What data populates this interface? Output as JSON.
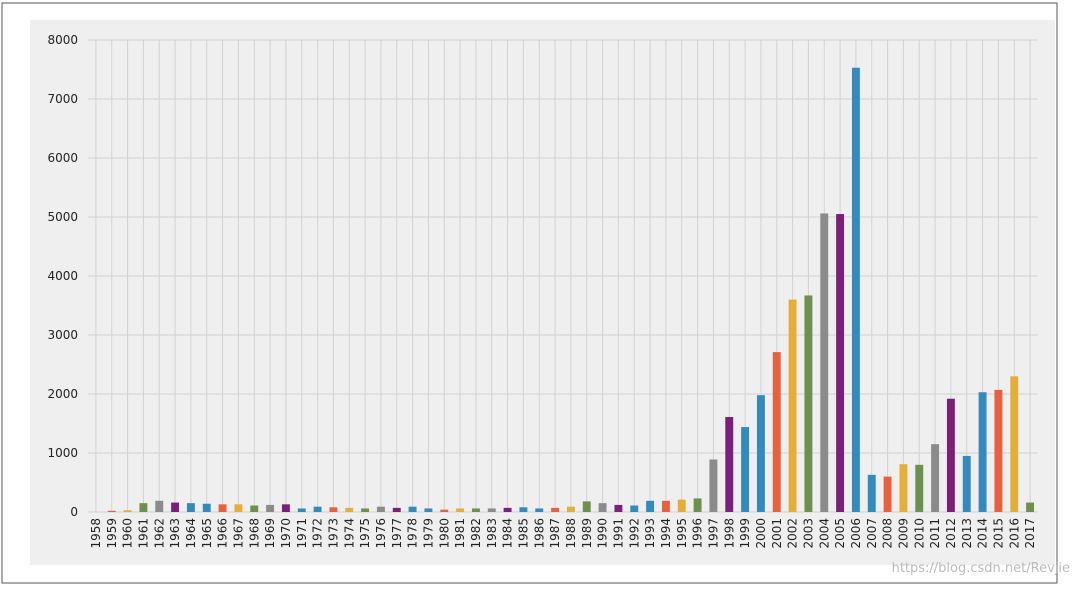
{
  "chart_data": {
    "type": "bar",
    "categories": [
      "1958",
      "1959",
      "1960",
      "1961",
      "1962",
      "1963",
      "1964",
      "1965",
      "1966",
      "1967",
      "1968",
      "1969",
      "1970",
      "1971",
      "1972",
      "1973",
      "1974",
      "1975",
      "1976",
      "1977",
      "1978",
      "1979",
      "1980",
      "1981",
      "1982",
      "1983",
      "1984",
      "1985",
      "1986",
      "1987",
      "1988",
      "1989",
      "1990",
      "1991",
      "1992",
      "1993",
      "1994",
      "1995",
      "1996",
      "1997",
      "1998",
      "1999",
      "2000",
      "2001",
      "2002",
      "2003",
      "2004",
      "2005",
      "2006",
      "2007",
      "2008",
      "2009",
      "2010",
      "2011",
      "2012",
      "2013",
      "2014",
      "2015",
      "2016",
      "2017"
    ],
    "values": [
      0,
      20,
      30,
      150,
      190,
      160,
      150,
      140,
      130,
      130,
      110,
      120,
      130,
      60,
      90,
      80,
      70,
      60,
      90,
      70,
      90,
      60,
      40,
      60,
      60,
      60,
      70,
      80,
      60,
      70,
      90,
      180,
      150,
      120,
      110,
      190,
      190,
      210,
      230,
      890,
      1610,
      1440,
      1980,
      2710,
      3600,
      3670,
      5060,
      5050,
      7530,
      630,
      600,
      810,
      800,
      1150,
      1920,
      950,
      2030,
      2070,
      2300,
      160
    ],
    "color_cycle": [
      "#348ABD",
      "#E8613F",
      "#E5AE38",
      "#6D904F",
      "#8B8B8B",
      "#7A1F7A",
      "#348ABD"
    ],
    "ylim": [
      0,
      8000
    ],
    "yticks": [
      0,
      1000,
      2000,
      3000,
      4000,
      5000,
      6000,
      7000,
      8000
    ],
    "grid": true
  },
  "watermark": "https://blog.csdn.net/Revjie"
}
